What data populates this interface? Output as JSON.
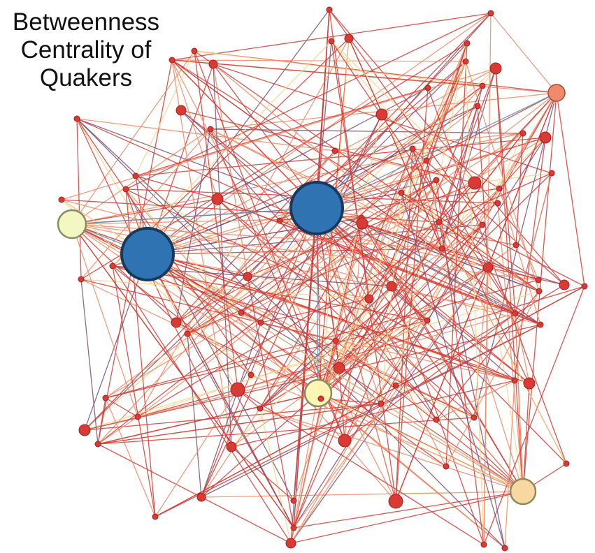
{
  "title": {
    "line1": "Betweenness",
    "line2": "Centrality of",
    "line3": "Quakers"
  },
  "colors": {
    "node_low": "#d93a33",
    "node_low_stroke": "#9e2220",
    "node_orange": "#f08a6a",
    "node_orange_stroke": "#9b4b35",
    "node_light_yellow": "#f3f7c2",
    "node_yellow": "#fcf6b5",
    "node_tan": "#f8d7a0",
    "node_high": "#2f73b3",
    "node_high_stroke": "#163a5c",
    "node_pale_stroke": "#8a8a60",
    "edge_red": "#d53a33",
    "edge_orange": "#ee8a66",
    "edge_purple": "#7a4f77",
    "edge_yellow": "#f4d58a",
    "edge_blue": "#5b8db0"
  }
}
